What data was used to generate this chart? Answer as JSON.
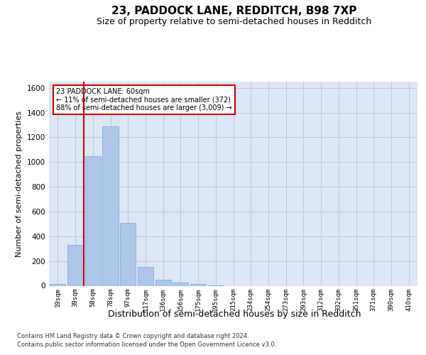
{
  "title1": "23, PADDOCK LANE, REDDITCH, B98 7XP",
  "title2": "Size of property relative to semi-detached houses in Redditch",
  "xlabel": "Distribution of semi-detached houses by size in Redditch",
  "ylabel": "Number of semi-detached properties",
  "footer_line1": "Contains HM Land Registry data © Crown copyright and database right 2024.",
  "footer_line2": "Contains public sector information licensed under the Open Government Licence v3.0.",
  "categories": [
    "19sqm",
    "39sqm",
    "58sqm",
    "78sqm",
    "97sqm",
    "117sqm",
    "136sqm",
    "156sqm",
    "175sqm",
    "195sqm",
    "215sqm",
    "234sqm",
    "254sqm",
    "273sqm",
    "293sqm",
    "312sqm",
    "332sqm",
    "351sqm",
    "371sqm",
    "390sqm",
    "410sqm"
  ],
  "values": [
    15,
    330,
    1050,
    1290,
    510,
    150,
    50,
    25,
    15,
    5,
    0,
    0,
    0,
    0,
    0,
    0,
    0,
    0,
    0,
    0,
    0
  ],
  "bar_color": "#aec6e8",
  "bar_edge_color": "#7aafd4",
  "property_line_x": 1.5,
  "annotation_text_line1": "23 PADDOCK LANE: 60sqm",
  "annotation_text_line2": "← 11% of semi-detached houses are smaller (372)",
  "annotation_text_line3": "88% of semi-detached houses are larger (3,009) →",
  "ylim": [
    0,
    1650
  ],
  "yticks": [
    0,
    200,
    400,
    600,
    800,
    1000,
    1200,
    1400,
    1600
  ],
  "vline_color": "#cc0000",
  "bg_color": "#dce6f5",
  "plot_bg": "#ffffff",
  "grid_color": "#b8c8de",
  "title1_fontsize": 11,
  "title2_fontsize": 9,
  "ylabel_fontsize": 8,
  "xlabel_fontsize": 9,
  "annotation_box_facecolor": "#ffffff",
  "annotation_border_color": "#cc0000"
}
